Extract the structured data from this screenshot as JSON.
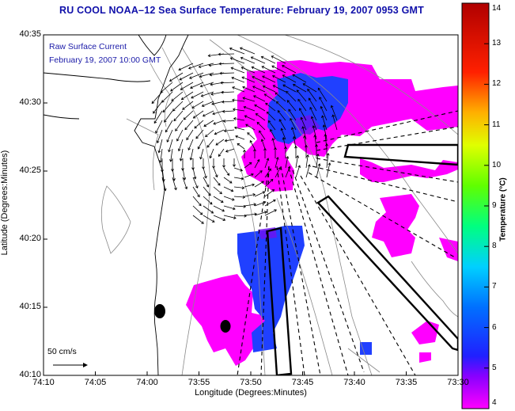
{
  "title": "RU COOL  NOAA–12  Sea Surface Temperature:  February 19, 2007 0953 GMT",
  "current_label": "Raw Surface Current",
  "current_time": "February 19, 2007 10:00 GMT",
  "scale_vector_label": "50 cm/s",
  "x_axis": {
    "label": "Longitude (Degrees:Minutes)",
    "ticks": [
      "74:10",
      "74:05",
      "74:00",
      "73:55",
      "73:50",
      "73:45",
      "73:40",
      "73:35",
      "73:30"
    ]
  },
  "y_axis": {
    "label": "Latitude (Degrees:Minutes)",
    "ticks": [
      "40:35",
      "40:30",
      "40:25",
      "40:20",
      "40:15",
      "40:10"
    ]
  },
  "colorbar": {
    "label": "Temperature (°C)",
    "ticks": [
      "14",
      "13",
      "12",
      "11",
      "10",
      "9",
      "8",
      "7",
      "6",
      "5",
      "4"
    ],
    "range": [
      4,
      14
    ]
  },
  "colors": {
    "title": "#1111aa",
    "annotation": "#1a1aa8",
    "warm_patch": "#ff00ff",
    "cool_patch": "#2040ff"
  }
}
